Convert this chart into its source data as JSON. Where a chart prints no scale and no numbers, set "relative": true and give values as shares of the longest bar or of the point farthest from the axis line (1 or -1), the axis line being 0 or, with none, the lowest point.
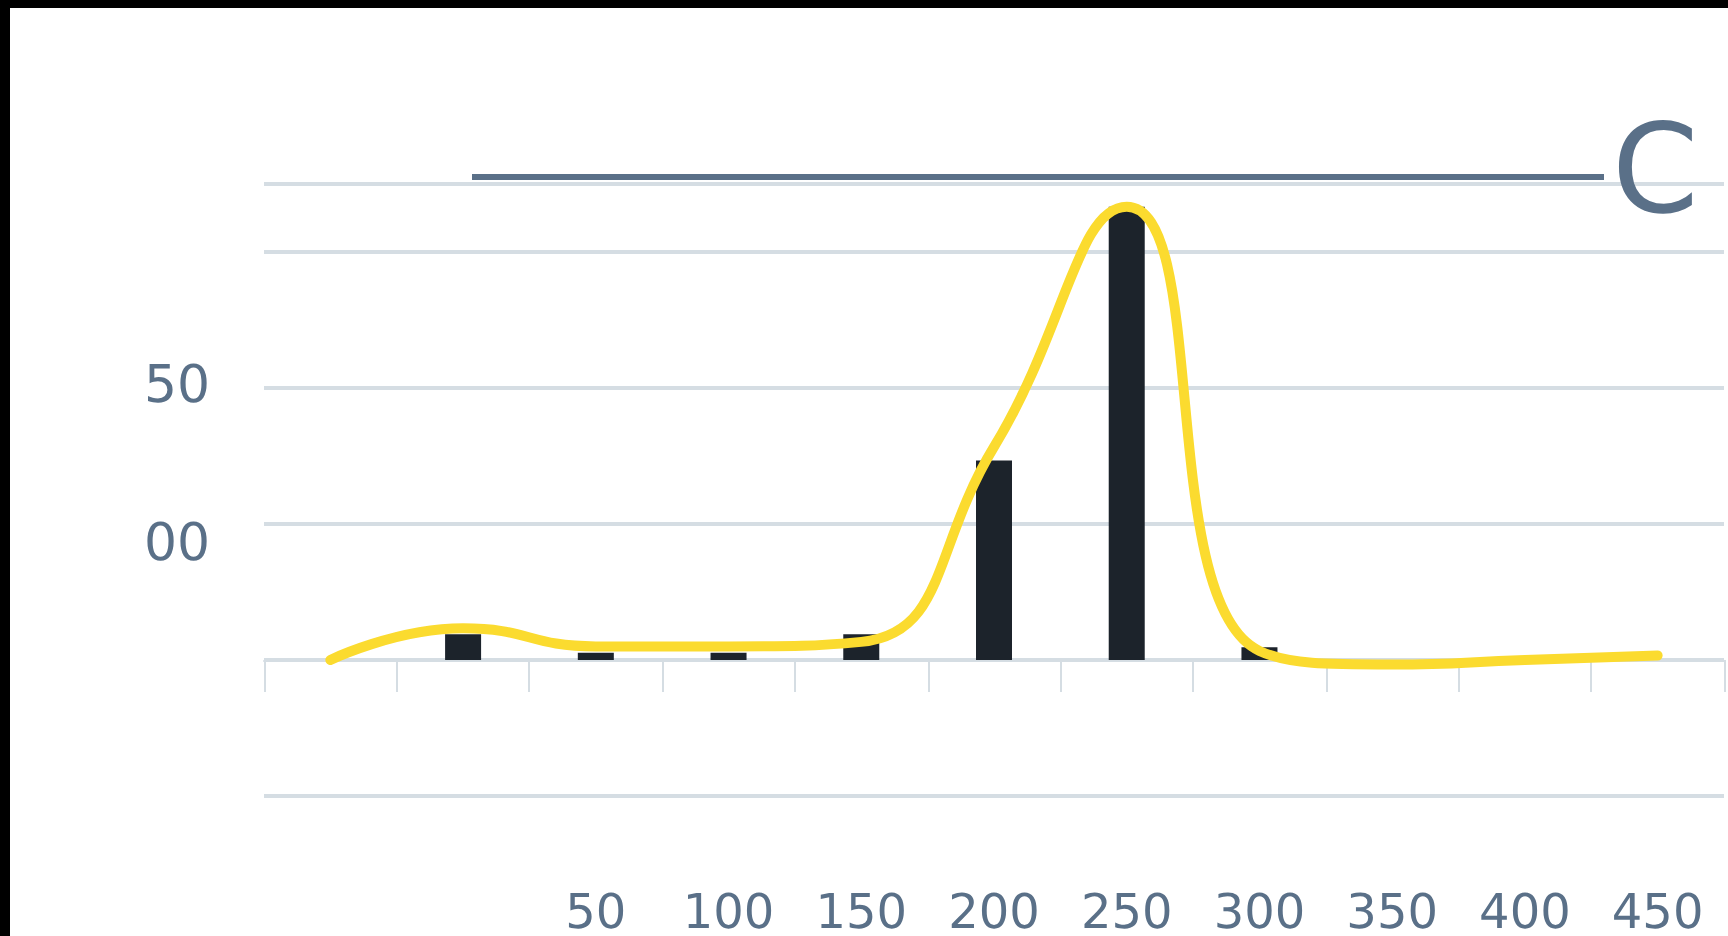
{
  "chart_data": {
    "type": "bar",
    "relative": true,
    "grid": "y",
    "categories": [
      null,
      null,
      "50",
      "100",
      "150",
      "200",
      "250",
      "300",
      "350",
      "400",
      "450"
    ],
    "series": [
      {
        "color": "#1c232b",
        "values": [
          null,
          0.057,
          0.016,
          0.016,
          0.057,
          0.44,
          1,
          0.028,
          null,
          null,
          null
        ]
      },
      {
        "type": "line",
        "color": "#fbdb2f",
        "values": [
          0,
          0.07,
          0.03,
          0.03,
          0.04,
          0.47,
          1,
          0.02,
          -0.01,
          0,
          0.01
        ]
      }
    ],
    "annotations": [
      "50",
      "00",
      "C"
    ]
  }
}
